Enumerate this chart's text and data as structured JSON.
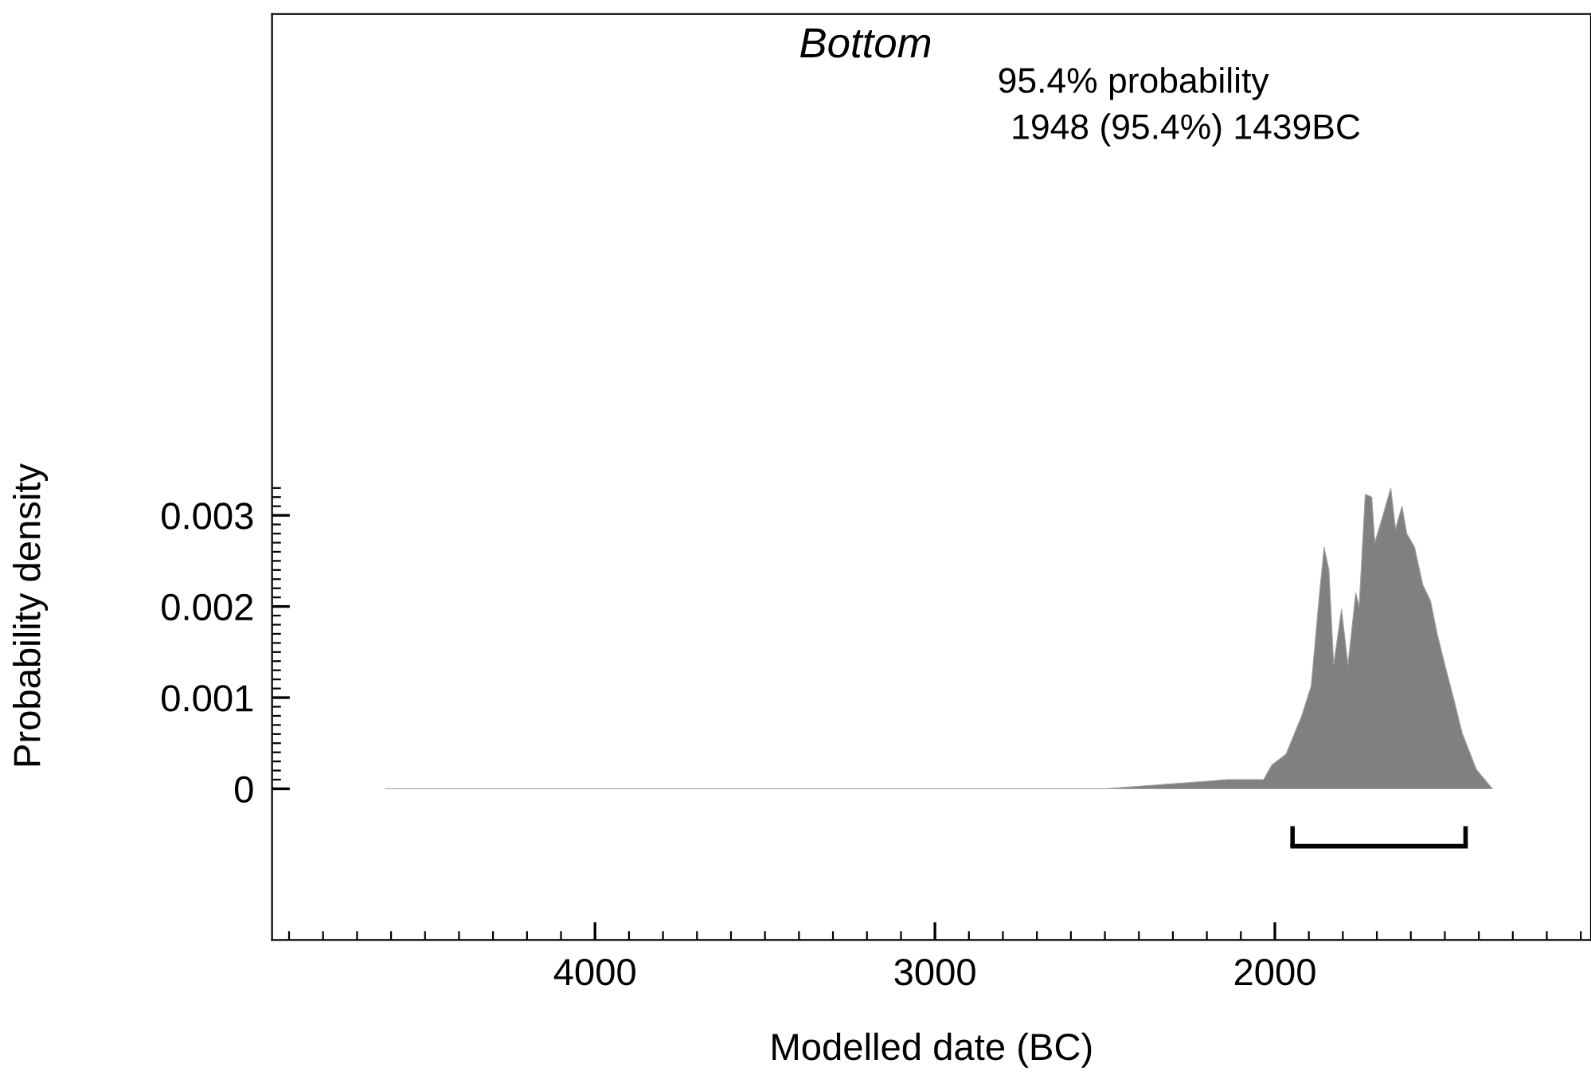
{
  "chart_data": {
    "type": "area",
    "title": "Bottom",
    "xlabel": "Modelled date (BC)",
    "ylabel": "Probability density",
    "annotations": [
      "95.4% probability",
      "1948 (95.4%) 1439BC"
    ],
    "x": [
      4617,
      2500,
      2140,
      2033,
      2009,
      1967,
      1921,
      1893,
      1869,
      1855,
      1841,
      1827,
      1804,
      1785,
      1762,
      1752,
      1734,
      1715,
      1706,
      1682,
      1659,
      1645,
      1626,
      1612,
      1589,
      1565,
      1542,
      1523,
      1500,
      1472,
      1449,
      1407,
      1360
    ],
    "series": [
      {
        "color": "#808080",
        "values": [
          0,
          0,
          0.0001,
          0.0001,
          0.00026,
          0.00038,
          0.0008,
          0.00113,
          0.00213,
          0.00265,
          0.0024,
          0.00136,
          0.00197,
          0.00136,
          0.00215,
          0.002,
          0.00323,
          0.0032,
          0.0027,
          0.003,
          0.0033,
          0.00285,
          0.0031,
          0.0028,
          0.00265,
          0.00224,
          0.00206,
          0.00171,
          0.00136,
          0.00096,
          0.00061,
          0.00021,
          0
        ]
      },
      {
        "type": "line",
        "color": "#000000",
        "x": [
          1948,
          1439
        ],
        "values": [
          -0.00063,
          -0.00063
        ]
      }
    ],
    "xlim": [
      4950,
      1070
    ],
    "xticks": [
      4000,
      3000,
      2000
    ],
    "ylim": [
      -0.00166,
      0.0085
    ],
    "yticks": [
      0,
      0.001,
      0.002,
      0.003
    ],
    "grid": false,
    "legend": false
  }
}
